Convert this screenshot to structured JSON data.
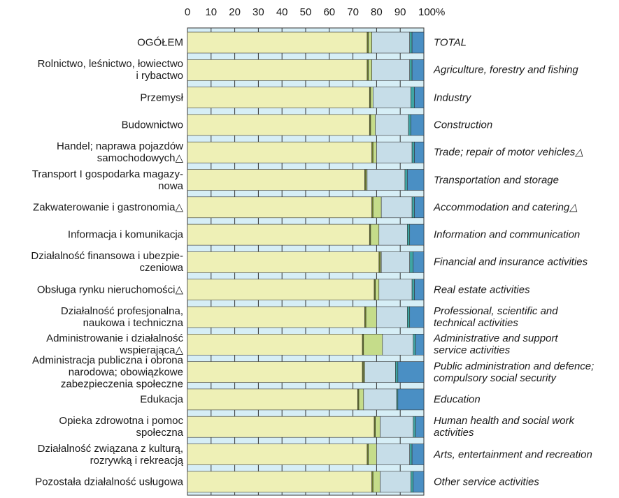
{
  "chart_data": {
    "type": "stacked_barh",
    "categories": [
      "OGÓŁEM",
      "Rolnictwo, leśnictwo, łowiectwo\ni rybactwo",
      "Przemysł",
      "Budownictwo",
      "Handel; naprawa pojazdów\nsamochodowych△",
      "Transport I gospodarka magazy-\nnowa",
      "Zakwaterowanie i gastronomia△",
      "Informacja i komunikacja",
      "Działalność finansowa i ubezpie-\nczeniowa",
      "Obsługa rynku nieruchomości△",
      "Działalność profesjonalna,\nnaukowa i techniczna",
      "Administrowanie i działalność\nwspierająca△",
      "Administracja publiczna i obrona\nnarodowa; obowiązkowe\nzabezpieczenia społeczne",
      "Edukacja",
      "Opieka zdrowotna i pomoc\nspołeczna",
      "Działalność związana z kulturą,\nrozrywką i rekreacją",
      "Pozostała działalność usługowa"
    ],
    "categories_en": [
      "TOTAL",
      "Agriculture, forestry and fishing",
      "Industry",
      "Construction",
      "Trade; repair of motor vehicles△",
      "Transportation and storage",
      "Accommodation and catering△",
      "Information and communication",
      "Financial and insurance activities",
      "Real estate activities",
      "Professional, scientific and\n technical activities",
      "Administrative and support\n service activities",
      "Public administration and defence;\n compulsory social security",
      "Education",
      "Human health and social work\nactivities",
      "Arts, entertainment and recreation",
      "Other service activities"
    ],
    "series": [
      {
        "color": "#eef0b6",
        "values": [
          76,
          76,
          77,
          77,
          78,
          75,
          78,
          77,
          81,
          79,
          75,
          74,
          74,
          72,
          79,
          76,
          78
        ]
      },
      {
        "color": "#6b7a2a",
        "values": [
          0.5,
          0.5,
          0.5,
          0.5,
          0.5,
          0.5,
          0.5,
          0.5,
          0.5,
          0.5,
          0.5,
          0.5,
          0.5,
          0.5,
          0.5,
          0.5,
          0.5
        ]
      },
      {
        "color": "#c5dc8a",
        "values": [
          1.5,
          1.5,
          1,
          2,
          1.5,
          0.5,
          3.5,
          3.5,
          0.5,
          1.5,
          4.5,
          8,
          0.5,
          2,
          2,
          3.5,
          3
        ]
      },
      {
        "color": "#c6dde8",
        "values": [
          16,
          16,
          16,
          14,
          15,
          16,
          13,
          12,
          12,
          14,
          13,
          13,
          13,
          14,
          14,
          14,
          13
        ]
      },
      {
        "color": "#3fa5a3",
        "values": [
          1,
          1,
          1.5,
          1,
          1,
          1,
          1,
          1,
          1.5,
          1,
          1,
          1,
          1,
          0.5,
          1,
          1,
          1
        ]
      },
      {
        "color": "#4a8fc4",
        "values": [
          5,
          5,
          4,
          5.5,
          4,
          7,
          4,
          6,
          4.5,
          4,
          6,
          3.5,
          11,
          11,
          3.5,
          5,
          4.5
        ]
      }
    ],
    "xlim": [
      0,
      100
    ],
    "xticks": [
      0,
      10,
      20,
      30,
      40,
      50,
      60,
      70,
      80,
      90,
      {
        "value": 100,
        "label": "100%"
      }
    ]
  }
}
